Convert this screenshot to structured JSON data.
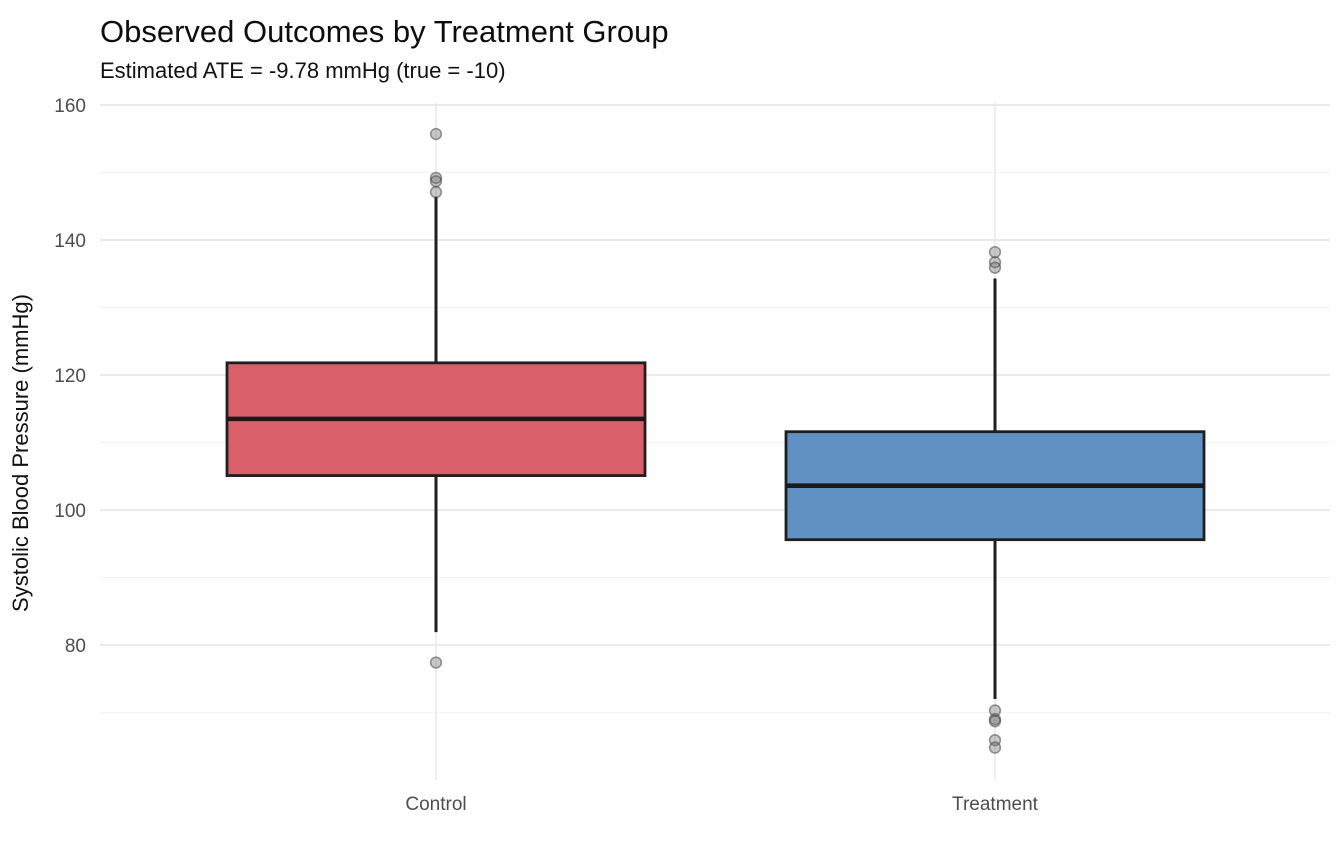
{
  "figure": {
    "background": "#ffffff"
  },
  "chart_data": {
    "type": "boxplot",
    "title": "Observed Outcomes by Treatment Group",
    "subtitle": "Estimated ATE = -9.78 mmHg (true = -10)",
    "annotations": {
      "estimated_ate_mmhg": -9.78,
      "true_ate_mmhg": -10,
      "units": "mmHg"
    },
    "xlabel": "",
    "ylabel": "Systolic Blood Pressure (mmHg)",
    "ylim": [
      60,
      160.4
    ],
    "yticks_major": [
      80,
      100,
      120,
      140,
      160
    ],
    "yticks_minor": [
      70,
      90,
      110,
      130,
      150
    ],
    "grid": true,
    "legend": "none",
    "categories": [
      "Control",
      "Treatment"
    ],
    "groups": [
      {
        "label": "Control",
        "fill": "#D9606A",
        "q1": 105.1,
        "median": 113.5,
        "q3": 121.8,
        "whisker_low": 81.9,
        "whisker_high": 146.4,
        "outliers": [
          155.7,
          149.2,
          148.7,
          147.1,
          77.4
        ]
      },
      {
        "label": "Treatment",
        "fill": "#6191C3",
        "q1": 95.6,
        "median": 103.6,
        "q3": 111.6,
        "whisker_low": 72.0,
        "whisker_high": 134.3,
        "outliers": [
          138.2,
          136.7,
          135.9,
          70.3,
          69.0,
          68.7,
          65.9,
          64.8
        ]
      }
    ],
    "colors": {
      "box_stroke": "#1f1f1f",
      "median_stroke": "#1a1a1a",
      "whisker_stroke": "#1f1f1f",
      "outlier_fill": "#6e6e6e",
      "outlier_stroke": "#3c3c3c",
      "grid_major": "#e4e4e4",
      "grid_minor": "#f2f2f2",
      "grid_vertical": "#e9e9e9",
      "tick_label": "#4d4d4d",
      "background": "#ffffff"
    }
  }
}
